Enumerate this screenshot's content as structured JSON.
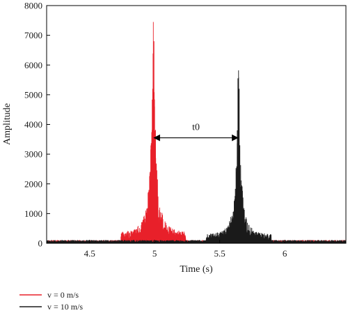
{
  "chart_data": {
    "type": "line",
    "title": "",
    "xlabel": "Time (s)",
    "ylabel": "Amplitude",
    "xlim": [
      4.17,
      6.47
    ],
    "ylim": [
      0,
      8000
    ],
    "xticks": [
      4.5,
      5,
      5.5,
      6
    ],
    "xtick_labels": [
      "4.5",
      "5",
      "5.5",
      "6"
    ],
    "yticks": [
      0,
      1000,
      2000,
      3000,
      4000,
      5000,
      6000,
      7000,
      8000
    ],
    "ytick_labels": [
      "0",
      "1000",
      "2000",
      "3000",
      "4000",
      "5000",
      "6000",
      "7000",
      "8000"
    ],
    "grid": false,
    "legend_position": "bottom-left",
    "series": [
      {
        "name": "v = 0 m/s",
        "color": "#e8202a",
        "peak_time": 4.99,
        "peak_amplitude": 7450,
        "secondary_peaks": [
          [
            4.995,
            6800
          ],
          [
            4.985,
            5200
          ],
          [
            5.0,
            4600
          ],
          [
            4.98,
            3500
          ],
          [
            5.01,
            2500
          ]
        ]
      },
      {
        "name": "v = 10 m/s",
        "color": "#1a1a1a",
        "peak_time": 5.645,
        "peak_amplitude": 5820,
        "secondary_peaks": [
          [
            5.64,
            5550
          ],
          [
            5.65,
            5200
          ],
          [
            5.635,
            3800
          ],
          [
            5.655,
            3300
          ],
          [
            5.63,
            2200
          ]
        ]
      }
    ],
    "annotation": {
      "text": "t0",
      "from_x": 4.99,
      "to_x": 5.645,
      "y": 3550,
      "style": "double-arrow"
    }
  }
}
